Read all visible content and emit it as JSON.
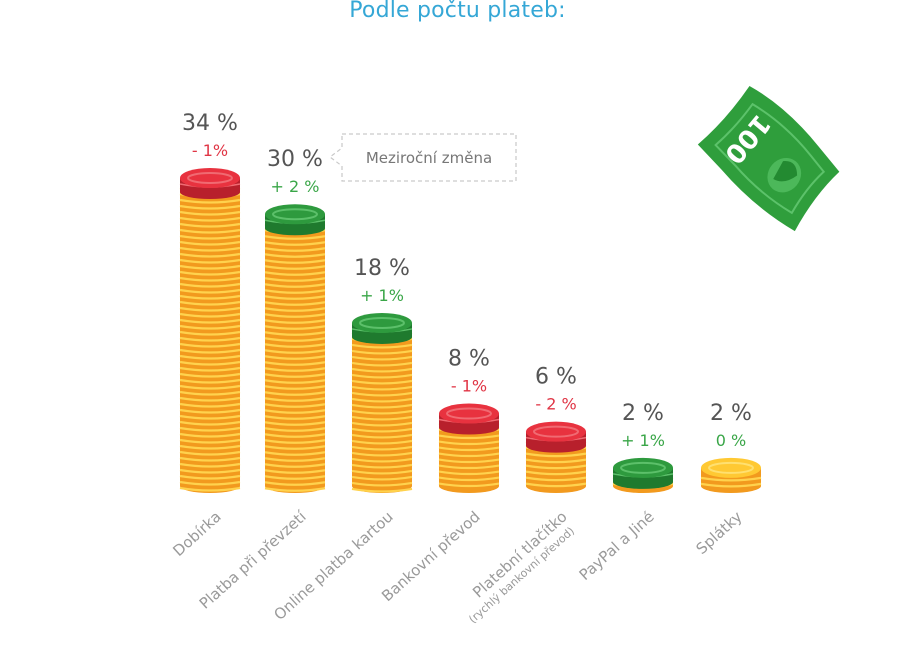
{
  "title": "Podle počtu plateb:",
  "tooltip": {
    "label": "Meziroční změna"
  },
  "banknote": {
    "label": "100"
  },
  "colors": {
    "positive": "#3aa648",
    "negative": "#e03545",
    "neutral": "#3aa648",
    "coin_body": "#f29a1e",
    "coin_stripe": "#ffd24d"
  },
  "chart_data": {
    "type": "bar",
    "title": "Podle počtu plateb:",
    "unit": "%",
    "categories": [
      "Dobírka",
      "Platba při převzetí",
      "Online platba kartou",
      "Bankovní převod",
      "Platební tlačítko",
      "PayPal a Jiné",
      "Splátky"
    ],
    "category_sublabels": [
      "",
      "",
      "",
      "",
      "(rychlý bankovní převod)",
      "",
      ""
    ],
    "values": [
      34,
      30,
      18,
      8,
      6,
      2,
      2
    ],
    "value_labels": [
      "34 %",
      "30 %",
      "18 %",
      "8 %",
      "6 %",
      "2 %",
      "2 %"
    ],
    "changes": [
      -1,
      2,
      1,
      -1,
      -2,
      1,
      0
    ],
    "change_labels": [
      "- 1%",
      "+ 2 %",
      "+ 1%",
      "- 1%",
      "- 2 %",
      "+ 1%",
      "0 %"
    ],
    "top_coin": [
      "red",
      "green",
      "green",
      "red",
      "red",
      "green",
      "yellow"
    ],
    "ylim": [
      0,
      34
    ]
  }
}
